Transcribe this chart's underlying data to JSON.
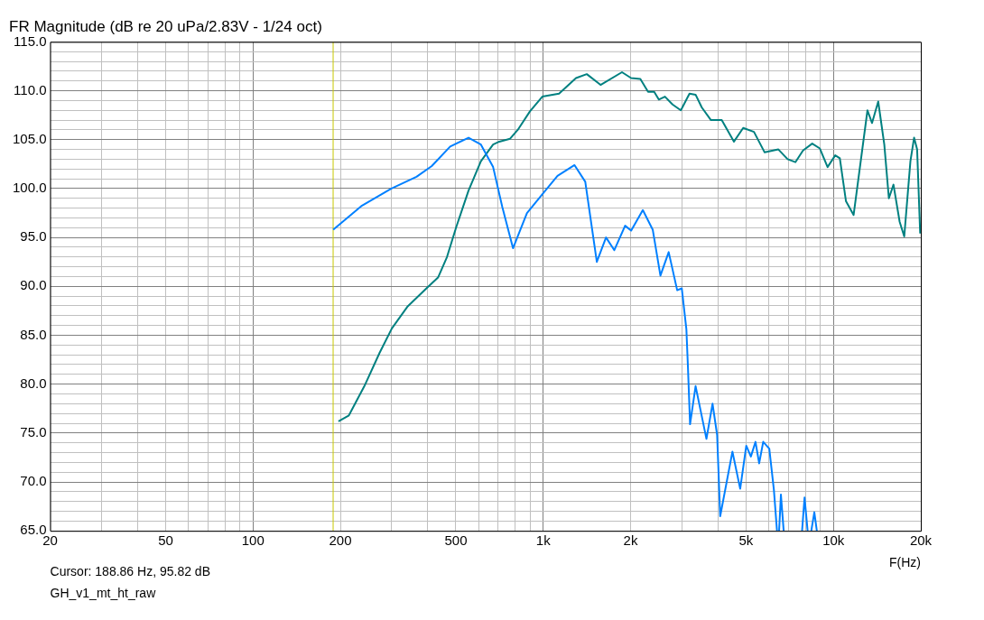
{
  "chart_data": {
    "type": "line",
    "title": "FR Magnitude (dB re 20 uPa/2.83V - 1/24 oct)",
    "xlabel": "F(Hz)",
    "log": "x",
    "grid": true,
    "legend": false,
    "marker": "none",
    "line_style": "solid",
    "xlim": [
      20,
      20000
    ],
    "ylim": [
      65,
      115
    ],
    "xticks": [
      20,
      {
        "value": 30,
        "label": null
      },
      {
        "value": 40,
        "label": null
      },
      50,
      {
        "value": 60,
        "label": null
      },
      {
        "value": 70,
        "label": null
      },
      {
        "value": 80,
        "label": null
      },
      {
        "value": 90,
        "label": null
      },
      100,
      200,
      {
        "value": 300,
        "label": null
      },
      {
        "value": 400,
        "label": null
      },
      500,
      {
        "value": 600,
        "label": null
      },
      {
        "value": 700,
        "label": null
      },
      {
        "value": 800,
        "label": null
      },
      {
        "value": 900,
        "label": null
      },
      {
        "value": 1000,
        "label": "1k"
      },
      {
        "value": 2000,
        "label": "2k"
      },
      {
        "value": 3000,
        "label": null
      },
      {
        "value": 4000,
        "label": null
      },
      {
        "value": 5000,
        "label": "5k"
      },
      {
        "value": 6000,
        "label": null
      },
      {
        "value": 7000,
        "label": null
      },
      {
        "value": 8000,
        "label": null
      },
      {
        "value": 9000,
        "label": null
      },
      {
        "value": 10000,
        "label": "10k"
      },
      {
        "value": 20000,
        "label": "20k"
      }
    ],
    "yticks": [
      {
        "value": 65,
        "label": "65.0"
      },
      {
        "value": 66,
        "label": null
      },
      {
        "value": 67,
        "label": null
      },
      {
        "value": 68,
        "label": null
      },
      {
        "value": 69,
        "label": null
      },
      {
        "value": 70,
        "label": "70.0"
      },
      {
        "value": 71,
        "label": null
      },
      {
        "value": 72,
        "label": null
      },
      {
        "value": 73,
        "label": null
      },
      {
        "value": 74,
        "label": null
      },
      {
        "value": 75,
        "label": "75.0"
      },
      {
        "value": 76,
        "label": null
      },
      {
        "value": 77,
        "label": null
      },
      {
        "value": 78,
        "label": null
      },
      {
        "value": 79,
        "label": null
      },
      {
        "value": 80,
        "label": "80.0"
      },
      {
        "value": 81,
        "label": null
      },
      {
        "value": 82,
        "label": null
      },
      {
        "value": 83,
        "label": null
      },
      {
        "value": 84,
        "label": null
      },
      {
        "value": 85,
        "label": "85.0"
      },
      {
        "value": 86,
        "label": null
      },
      {
        "value": 87,
        "label": null
      },
      {
        "value": 88,
        "label": null
      },
      {
        "value": 89,
        "label": null
      },
      {
        "value": 90,
        "label": "90.0"
      },
      {
        "value": 91,
        "label": null
      },
      {
        "value": 92,
        "label": null
      },
      {
        "value": 93,
        "label": null
      },
      {
        "value": 94,
        "label": null
      },
      {
        "value": 95,
        "label": "95.0"
      },
      {
        "value": 96,
        "label": null
      },
      {
        "value": 97,
        "label": null
      },
      {
        "value": 98,
        "label": null
      },
      {
        "value": 99,
        "label": null
      },
      {
        "value": 100,
        "label": "100.0"
      },
      {
        "value": 101,
        "label": null
      },
      {
        "value": 102,
        "label": null
      },
      {
        "value": 103,
        "label": null
      },
      {
        "value": 104,
        "label": null
      },
      {
        "value": 105,
        "label": "105.0"
      },
      {
        "value": 106,
        "label": null
      },
      {
        "value": 107,
        "label": null
      },
      {
        "value": 108,
        "label": null
      },
      {
        "value": 109,
        "label": null
      },
      {
        "value": 110,
        "label": "110.0"
      },
      {
        "value": 111,
        "label": null
      },
      {
        "value": 112,
        "label": null
      },
      {
        "value": 113,
        "label": null
      },
      {
        "value": 114,
        "label": null
      },
      {
        "value": 115,
        "label": "115.0"
      }
    ],
    "ref_lines": [
      {
        "axis": "x",
        "value": 188.86,
        "color": "#c8c800"
      }
    ],
    "annotations": [
      "Cursor: 188.86 Hz, 95.82 dB",
      "GH_v1_mt_ht_raw"
    ],
    "series": [
      {
        "color": "#0080ff",
        "x": [
          189,
          236,
          300,
          366,
          413,
          478,
          553,
          610,
          672,
          723,
          787,
          879,
          1004,
          1120,
          1282,
          1396,
          1530,
          1646,
          1758,
          1915,
          2009,
          2204,
          2384,
          2534,
          2706,
          2895,
          3002,
          3114,
          3153,
          3206,
          3350,
          3651,
          3832,
          3974,
          4072,
          4487,
          4772,
          5008,
          5194,
          5388,
          5547,
          5728,
          6011,
          6234,
          6390,
          6450,
          6498,
          6592,
          6738,
          7200,
          7796,
          7952,
          8147,
          8250,
          8389,
          8593,
          8765
        ],
        "values": [
          95.8,
          98.2,
          100.0,
          101.2,
          102.3,
          104.3,
          105.2,
          104.5,
          102.2,
          98.1,
          93.9,
          97.5,
          99.6,
          101.3,
          102.4,
          100.7,
          92.5,
          95.0,
          93.7,
          96.2,
          95.7,
          97.8,
          95.8,
          91.1,
          93.5,
          89.6,
          89.8,
          85.6,
          81.7,
          75.9,
          79.8,
          74.4,
          78.0,
          74.8,
          66.5,
          73.1,
          69.3,
          73.7,
          72.6,
          74.1,
          71.9,
          74.1,
          73.4,
          69.2,
          65.0,
          null,
          65.0,
          68.7,
          65.0,
          null,
          65.0,
          68.4,
          65.0,
          null,
          65.0,
          66.9,
          65.0
        ]
      },
      {
        "color": "#008080",
        "x": [
          197,
          214,
          242,
          273,
          301,
          340,
          393,
          434,
          466,
          502,
          553,
          610,
          672,
          706,
          769,
          817,
          900,
          993,
          1134,
          1297,
          1413,
          1576,
          1868,
          2009,
          2161,
          2298,
          2412,
          2502,
          2627,
          2790,
          2980,
          3192,
          3350,
          3518,
          3784,
          4122,
          4542,
          4887,
          5323,
          5794,
          6462,
          6952,
          7394,
          7855,
          8450,
          8979,
          9545,
          10144,
          10520,
          11048,
          11737,
          13098,
          13584,
          14266,
          14970,
          15524,
          16102,
          16910,
          17538,
          18418,
          18962,
          19424,
          19900
        ],
        "values": [
          76.2,
          76.8,
          79.8,
          83.2,
          85.7,
          87.9,
          89.7,
          90.9,
          93.0,
          96.1,
          99.8,
          102.8,
          104.5,
          104.8,
          105.1,
          106.0,
          107.9,
          109.4,
          109.7,
          111.3,
          111.7,
          110.6,
          111.9,
          111.3,
          111.2,
          109.9,
          109.9,
          109.1,
          109.4,
          108.6,
          108.0,
          109.7,
          109.6,
          108.3,
          107.0,
          107.0,
          104.8,
          106.2,
          105.8,
          103.7,
          104.0,
          103.0,
          102.7,
          103.9,
          104.6,
          104.1,
          102.2,
          103.4,
          103.1,
          98.7,
          97.3,
          108.0,
          106.7,
          108.9,
          104.5,
          99.0,
          100.4,
          96.6,
          95.1,
          102.8,
          105.2,
          104.0,
          95.4
        ]
      }
    ]
  }
}
